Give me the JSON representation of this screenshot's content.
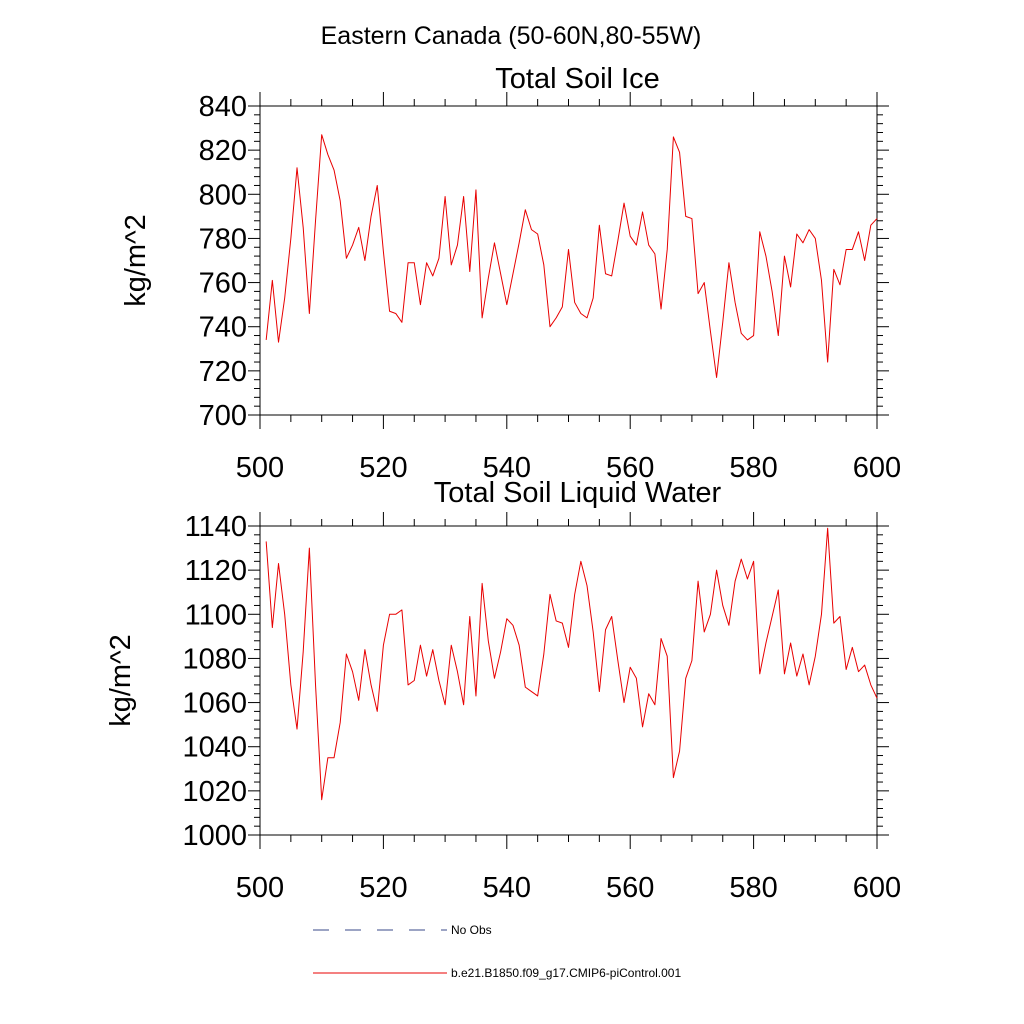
{
  "figure": {
    "title": "Eastern Canada (50-60N,80-55W)"
  },
  "legend": {
    "items": [
      {
        "label": "No Obs",
        "color": "#3a4a8a",
        "dashed": true
      },
      {
        "label": "b.e21.B1850.f09_g17.CMIP6-piControl.001",
        "color": "#e80000",
        "dashed": false
      }
    ]
  },
  "chart_data": [
    {
      "type": "line",
      "title": "Total Soil Ice",
      "ylabel": "kg/m^2",
      "xlabel": "",
      "xlim": [
        500,
        600
      ],
      "ylim": [
        700,
        840
      ],
      "x_ticks": [
        500,
        520,
        540,
        560,
        580,
        600
      ],
      "y_ticks": [
        700,
        720,
        740,
        760,
        780,
        800,
        820,
        840
      ],
      "x_start": 501,
      "series": [
        {
          "color": "#e80000",
          "values": [
            734,
            761,
            733,
            753,
            780,
            812,
            785,
            746,
            788,
            827,
            818,
            811,
            797,
            771,
            777,
            785,
            770,
            790,
            804,
            774,
            747,
            746,
            742,
            769,
            769,
            750,
            769,
            763,
            771,
            799,
            768,
            777,
            799,
            765,
            802,
            744,
            762,
            778,
            764,
            750,
            764,
            778,
            793,
            784,
            782,
            768,
            740,
            744,
            749,
            775,
            751,
            746,
            744,
            753,
            786,
            764,
            763,
            779,
            796,
            781,
            777,
            792,
            777,
            773,
            748,
            775,
            826,
            819,
            790,
            789,
            755,
            760,
            738,
            717,
            742,
            769,
            751,
            737,
            734,
            736,
            783,
            772,
            756,
            736,
            772,
            758,
            782,
            778,
            784,
            780,
            761,
            724,
            766,
            759,
            775,
            775,
            783,
            770,
            786,
            789
          ]
        }
      ]
    },
    {
      "type": "line",
      "title": "Total Soil Liquid Water",
      "ylabel": "kg/m^2",
      "xlabel": "",
      "xlim": [
        500,
        600
      ],
      "ylim": [
        1000,
        1140
      ],
      "x_ticks": [
        500,
        520,
        540,
        560,
        580,
        600
      ],
      "y_ticks": [
        1000,
        1020,
        1040,
        1060,
        1080,
        1100,
        1120,
        1140
      ],
      "x_start": 501,
      "series": [
        {
          "color": "#e80000",
          "values": [
            1133,
            1094,
            1123,
            1100,
            1068,
            1048,
            1083,
            1130,
            1068,
            1016,
            1035,
            1035,
            1051,
            1082,
            1074,
            1061,
            1084,
            1068,
            1056,
            1086,
            1100,
            1100,
            1102,
            1068,
            1070,
            1086,
            1072,
            1084,
            1070,
            1059,
            1086,
            1074,
            1059,
            1099,
            1063,
            1114,
            1088,
            1071,
            1083,
            1098,
            1095,
            1086,
            1067,
            1065,
            1063,
            1082,
            1109,
            1097,
            1096,
            1085,
            1109,
            1124,
            1113,
            1092,
            1065,
            1093,
            1099,
            1079,
            1060,
            1076,
            1071,
            1049,
            1064,
            1059,
            1089,
            1081,
            1026,
            1038,
            1071,
            1079,
            1115,
            1092,
            1100,
            1120,
            1104,
            1095,
            1115,
            1125,
            1116,
            1124,
            1073,
            1087,
            1099,
            1111,
            1073,
            1087,
            1072,
            1082,
            1068,
            1081,
            1100,
            1139,
            1096,
            1099,
            1075,
            1085,
            1074,
            1077,
            1068,
            1062
          ]
        }
      ]
    }
  ]
}
